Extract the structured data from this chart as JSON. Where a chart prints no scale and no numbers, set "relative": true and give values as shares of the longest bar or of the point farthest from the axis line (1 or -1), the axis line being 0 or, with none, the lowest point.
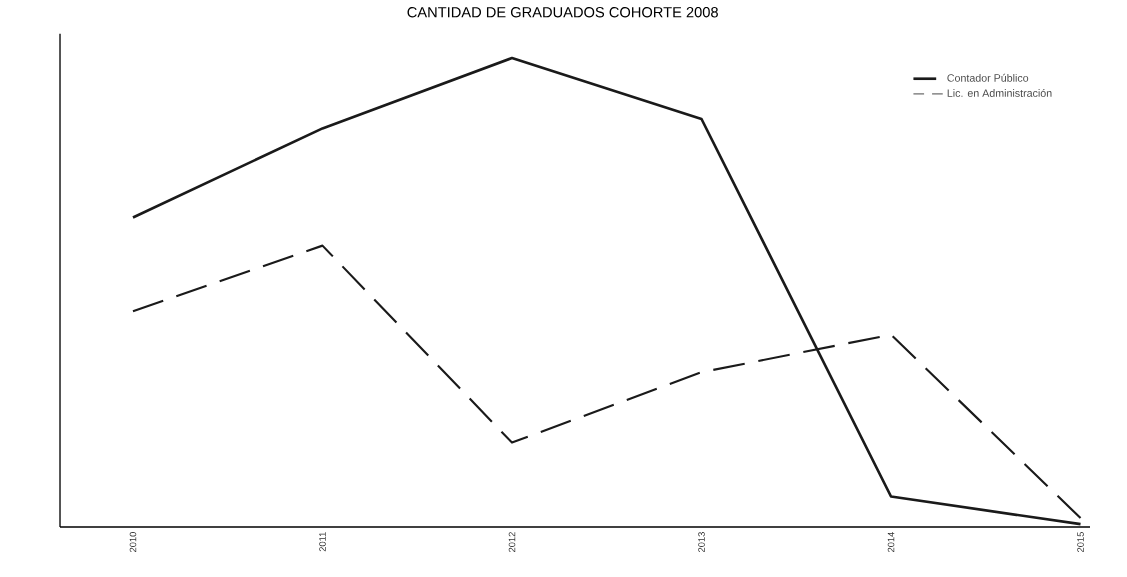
{
  "chart_data": {
    "type": "line",
    "title": "CANTIDAD DE GRADUADOS COHORTE 2008",
    "relative": true,
    "categories": [
      "2010",
      "2011",
      "2012",
      "2013",
      "2014",
      "2015"
    ],
    "series": [
      {
        "name": "Contador Público",
        "color": "#1a1a1a",
        "line_style": "solid",
        "values": [
          0.66,
          0.85,
          1,
          0.87,
          0.065,
          0.006
        ]
      },
      {
        "name": "Lic. en Administración",
        "color": "#1a1a1a",
        "line_style": "dashed",
        "values": [
          0.46,
          0.6,
          0.18,
          0.33,
          0.41,
          0.019
        ]
      }
    ],
    "legend": "top right",
    "grid": false
  }
}
